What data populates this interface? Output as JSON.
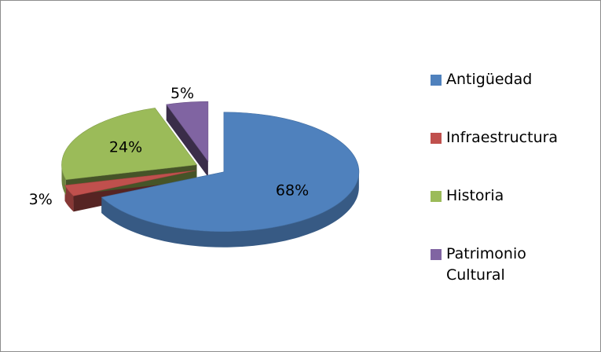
{
  "chart_data": {
    "type": "pie",
    "categories": [
      "Antigüedad",
      "Infraestructura",
      "Historia",
      "Patrimonio Cultural"
    ],
    "values": [
      68,
      3,
      24,
      5
    ],
    "value_labels": [
      "68%",
      "3%",
      "24%",
      "5%"
    ],
    "colors": [
      "#4f81bd",
      "#c0504d",
      "#9bbb59",
      "#8064a2"
    ],
    "legend": "right"
  }
}
